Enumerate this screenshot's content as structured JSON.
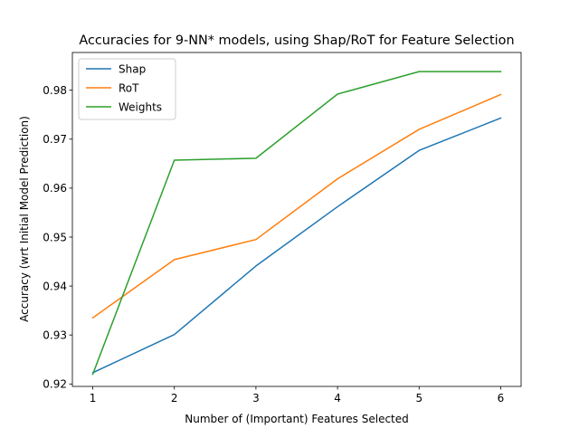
{
  "chart_data": {
    "type": "line",
    "title": "Accuracies for 9-NN* models, using Shap/RoT for Feature Selection",
    "xlabel": "Number of (Important) Features Selected",
    "ylabel": "Accuracy (wrt Initial Model Prediction)",
    "x": [
      1,
      2,
      3,
      4,
      5,
      6
    ],
    "xlim": [
      0.75,
      6.25
    ],
    "ylim": [
      0.9195,
      0.9877
    ],
    "xticks": [
      1,
      2,
      3,
      4,
      5,
      6
    ],
    "xtick_labels": [
      "1",
      "2",
      "3",
      "4",
      "5",
      "6"
    ],
    "yticks": [
      0.92,
      0.93,
      0.94,
      0.95,
      0.96,
      0.97,
      0.98
    ],
    "ytick_labels": [
      "0.92",
      "0.93",
      "0.94",
      "0.95",
      "0.96",
      "0.97",
      "0.98"
    ],
    "grid": false,
    "legend_position": "top-left",
    "series": [
      {
        "name": "Shap",
        "color": "#1f77b4",
        "values": [
          0.9223,
          0.9301,
          0.9441,
          0.9562,
          0.9677,
          0.9743
        ]
      },
      {
        "name": "RoT",
        "color": "#ff7f0e",
        "values": [
          0.9335,
          0.9454,
          0.9495,
          0.9619,
          0.972,
          0.9791
        ]
      },
      {
        "name": "Weights",
        "color": "#2ca02c",
        "values": [
          0.922,
          0.9657,
          0.9661,
          0.9792,
          0.9838,
          0.9838
        ]
      }
    ]
  }
}
